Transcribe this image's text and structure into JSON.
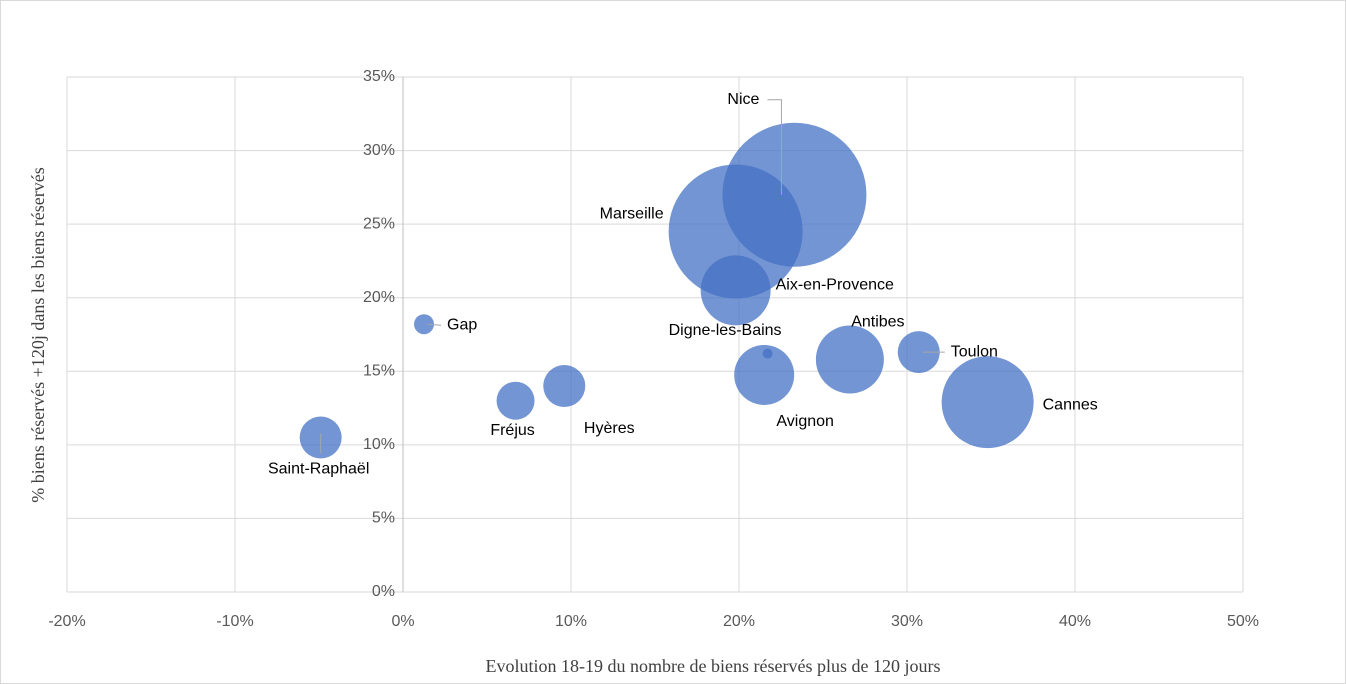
{
  "chart_data": {
    "type": "bubble",
    "x_label": "Evolution 18-19 du nombre de biens réservés plus de 120 jours",
    "y_label": "%  biens réservés +120j dans les biens réservés",
    "color": "#4472c4",
    "grid": true,
    "xlim": [
      -20,
      50
    ],
    "ylim": [
      0,
      35
    ],
    "xticks": [
      {
        "value": -20,
        "label": "-20%"
      },
      {
        "value": -10,
        "label": "-10%"
      },
      {
        "value": 0,
        "label": "0%"
      },
      {
        "value": 10,
        "label": "10%"
      },
      {
        "value": 20,
        "label": "20%"
      },
      {
        "value": 30,
        "label": "30%"
      },
      {
        "value": 40,
        "label": "40%"
      },
      {
        "value": 50,
        "label": "50%"
      }
    ],
    "yticks": [
      {
        "value": 0,
        "label": "0%"
      },
      {
        "value": 5,
        "label": "5%"
      },
      {
        "value": 10,
        "label": "10%"
      },
      {
        "value": 15,
        "label": "15%"
      },
      {
        "value": 20,
        "label": "20%"
      },
      {
        "value": 25,
        "label": "25%"
      },
      {
        "value": 30,
        "label": "30%"
      },
      {
        "value": 35,
        "label": "35%"
      }
    ],
    "labels": [
      "Nice",
      "Marseille",
      "Aix-en-Provence",
      "Digne-les-Bains",
      "Avignon",
      "Antibes",
      "Toulon",
      "Cannes",
      "Gap",
      "Fréjus",
      "Hyères",
      "Saint-Raphaël"
    ],
    "x": [
      23.3,
      19.8,
      19.8,
      21.7,
      21.5,
      26.6,
      30.7,
      34.8,
      1.25,
      6.7,
      9.6,
      -4.9
    ],
    "y": [
      27.0,
      24.5,
      20.5,
      16.2,
      14.75,
      15.8,
      16.3,
      12.9,
      18.2,
      13.0,
      14.0,
      10.5
    ],
    "sizes": [
      5184,
      4489,
      1225,
      25,
      900,
      1156,
      441,
      2116,
      100,
      361,
      441,
      441
    ]
  }
}
